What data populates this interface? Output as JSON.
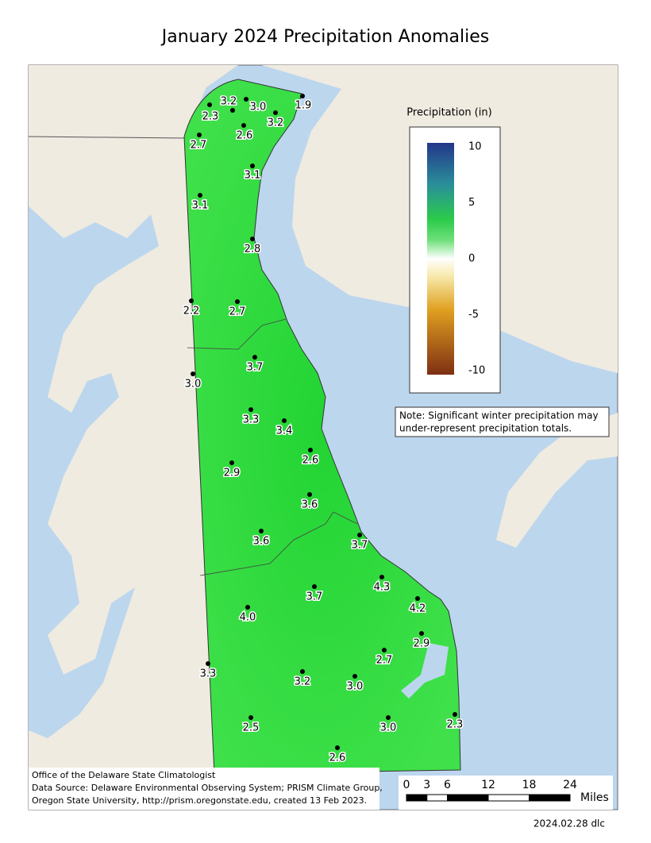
{
  "title": "January 2024 Precipitation Anomalies",
  "stations": [
    "2.3",
    "3.2",
    "3.0",
    "1.9",
    "3.2",
    "2.7",
    "2.6",
    "3.1",
    "3.1",
    "2.8",
    "2.2",
    "2.7",
    "3.7",
    "3.0",
    "3.3",
    "3.4",
    "2.6",
    "2.9",
    "3.6",
    "3.6",
    "3.7",
    "4.3",
    "3.7",
    "4.2",
    "4.0",
    "2.9",
    "2.7",
    "3.3",
    "3.2",
    "3.0",
    "2.5",
    "3.0",
    "2.3",
    "2.6"
  ],
  "legend": {
    "title": "Precipitation (in)",
    "ticks": [
      10,
      5,
      0,
      -5,
      -10
    ]
  },
  "note": [
    "Note: Significant winter precipitation may",
    "under-represent precipitation totals."
  ],
  "credits": [
    "Office of the Delaware State Climatologist",
    "Data Source: Delaware Environmental Observing System; PRISM Climate Group,",
    "Oregon State University, http://prism.oregonstate.edu, created 13 Feb 2023."
  ],
  "scale_bar": {
    "ticks": [
      0,
      3,
      6,
      12,
      18,
      24
    ],
    "unit": "Miles"
  },
  "footer": "2024.02.28 dlc"
}
